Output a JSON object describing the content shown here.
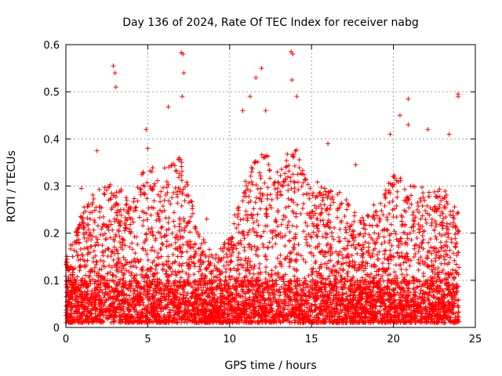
{
  "chart_data": {
    "type": "scatter",
    "title": "Day 136 of 2024, Rate Of TEC Index for receiver nabg",
    "xlabel": "GPS time / hours",
    "ylabel": "ROTI / TECUs",
    "xlim": [
      0,
      25
    ],
    "ylim": [
      0,
      0.6
    ],
    "x_ticks": [
      "0",
      "5",
      "10",
      "15",
      "20",
      "25"
    ],
    "y_ticks": [
      "0",
      "0.1",
      "0.2",
      "0.3",
      "0.4",
      "0.5",
      "0.6"
    ],
    "grid": true,
    "marker": "plus",
    "colors": {
      "series": "#ff0000",
      "axes": "#000000",
      "grid": "#a0a0a0"
    },
    "sample_outliers": [
      {
        "x": 2.9,
        "y": 0.555
      },
      {
        "x": 3.0,
        "y": 0.54
      },
      {
        "x": 3.05,
        "y": 0.51
      },
      {
        "x": 7.05,
        "y": 0.583
      },
      {
        "x": 7.15,
        "y": 0.58
      },
      {
        "x": 7.2,
        "y": 0.54
      },
      {
        "x": 7.1,
        "y": 0.49
      },
      {
        "x": 6.25,
        "y": 0.468
      },
      {
        "x": 11.6,
        "y": 0.53
      },
      {
        "x": 11.95,
        "y": 0.55
      },
      {
        "x": 13.75,
        "y": 0.585
      },
      {
        "x": 13.85,
        "y": 0.58
      },
      {
        "x": 13.8,
        "y": 0.525
      },
      {
        "x": 14.1,
        "y": 0.49
      },
      {
        "x": 10.8,
        "y": 0.46
      },
      {
        "x": 11.25,
        "y": 0.49
      },
      {
        "x": 12.2,
        "y": 0.46
      },
      {
        "x": 20.9,
        "y": 0.485
      },
      {
        "x": 20.9,
        "y": 0.43
      },
      {
        "x": 20.4,
        "y": 0.45
      },
      {
        "x": 23.95,
        "y": 0.495
      },
      {
        "x": 23.95,
        "y": 0.49
      },
      {
        "x": 4.9,
        "y": 0.42
      },
      {
        "x": 5.0,
        "y": 0.38
      },
      {
        "x": 16.0,
        "y": 0.39
      },
      {
        "x": 19.8,
        "y": 0.41
      },
      {
        "x": 22.1,
        "y": 0.42
      },
      {
        "x": 23.4,
        "y": 0.41
      },
      {
        "x": 17.7,
        "y": 0.345
      },
      {
        "x": 1.9,
        "y": 0.375
      },
      {
        "x": 0.95,
        "y": 0.295
      },
      {
        "x": 8.6,
        "y": 0.23
      },
      {
        "x": 9.7,
        "y": 0.18
      },
      {
        "x": 18.8,
        "y": 0.26
      }
    ],
    "envelope": {
      "description": "approximate upper envelope of the dense scatter (hours, ROTI)",
      "x": [
        0,
        1,
        2,
        3,
        4,
        5,
        6,
        7,
        8,
        9,
        10,
        11,
        12,
        13,
        14,
        15,
        16,
        17,
        18,
        19,
        20,
        21,
        22,
        23,
        24
      ],
      "y": [
        0.15,
        0.25,
        0.3,
        0.32,
        0.26,
        0.36,
        0.34,
        0.38,
        0.22,
        0.15,
        0.2,
        0.33,
        0.38,
        0.34,
        0.4,
        0.3,
        0.33,
        0.28,
        0.24,
        0.25,
        0.33,
        0.3,
        0.3,
        0.3,
        0.25
      ]
    }
  }
}
